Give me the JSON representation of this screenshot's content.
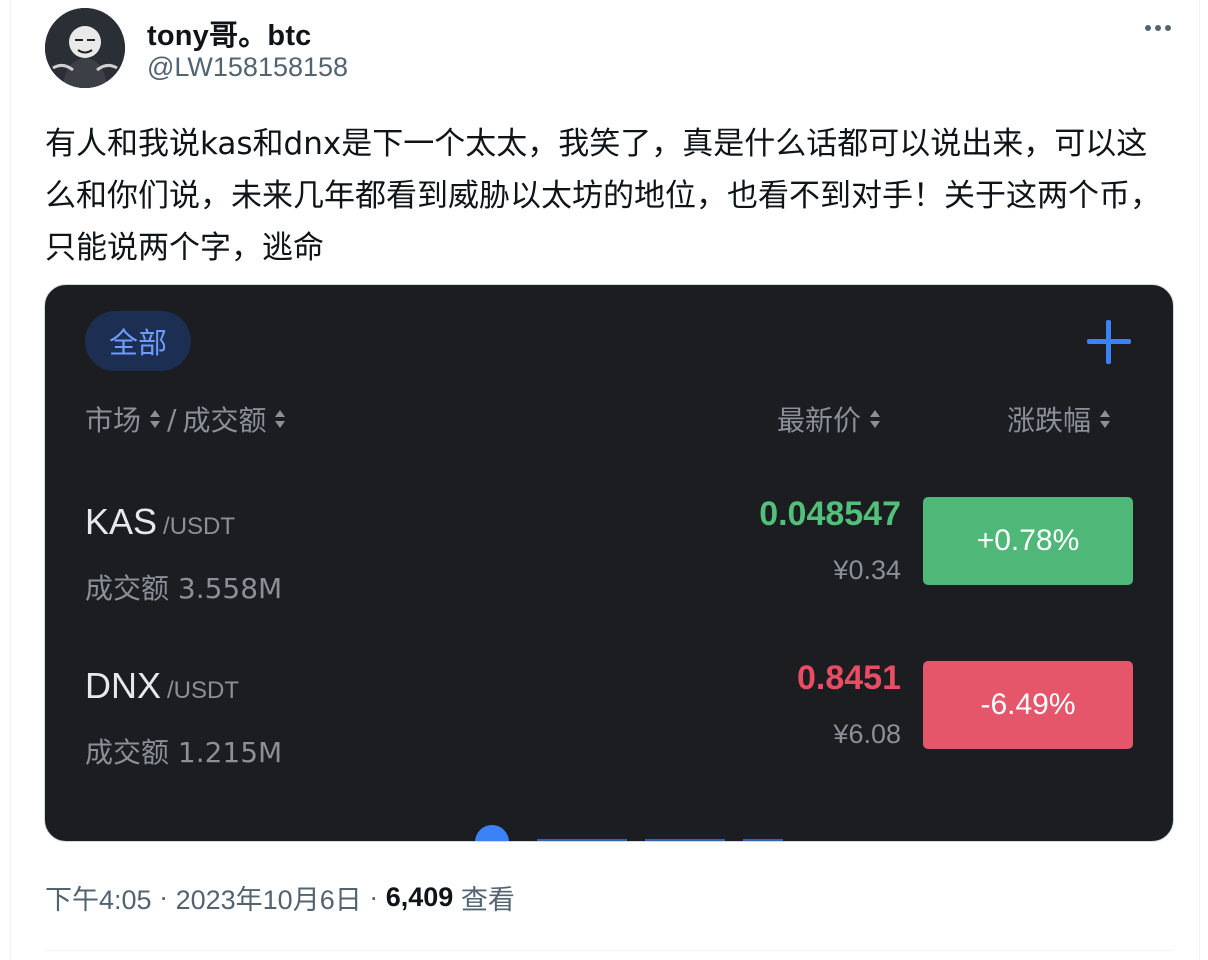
{
  "author": {
    "display_name": "tony哥。btc",
    "handle": "@LW158158158"
  },
  "tweet": {
    "text": "有人和我说kas和dnx是下一个太太，我笑了，真是什么话都可以说出来，可以这么和你们说，未来几年都看到威胁以太坊的地位，也看不到对手！关于这两个币，只能说两个字，逃命"
  },
  "media": {
    "filter_pill": "全部",
    "add_icon": "plus-icon",
    "columns": {
      "market": "市场",
      "separator": "/",
      "volume": "成交额",
      "last_price": "最新价",
      "change": "涨跌幅"
    },
    "rows": [
      {
        "symbol": "KAS",
        "quote": "/USDT",
        "volume": "成交额 3.558M",
        "price": "0.048547",
        "price_cny": "¥0.34",
        "change": "+0.78%",
        "direction": "up"
      },
      {
        "symbol": "DNX",
        "quote": "/USDT",
        "volume": "成交额 1.215M",
        "price": "0.8451",
        "price_cny": "¥6.08",
        "change": "-6.49%",
        "direction": "down"
      }
    ],
    "colors": {
      "up": "#4fb878",
      "down": "#e5566a",
      "up_text": "#52bf7a",
      "down_text": "#e84d63",
      "accent": "#3b82f6"
    }
  },
  "meta": {
    "time": "下午4:05",
    "dot1": "·",
    "date": "2023年10月6日",
    "dot2": "·",
    "views_count": "6,409",
    "views_label": "查看"
  }
}
